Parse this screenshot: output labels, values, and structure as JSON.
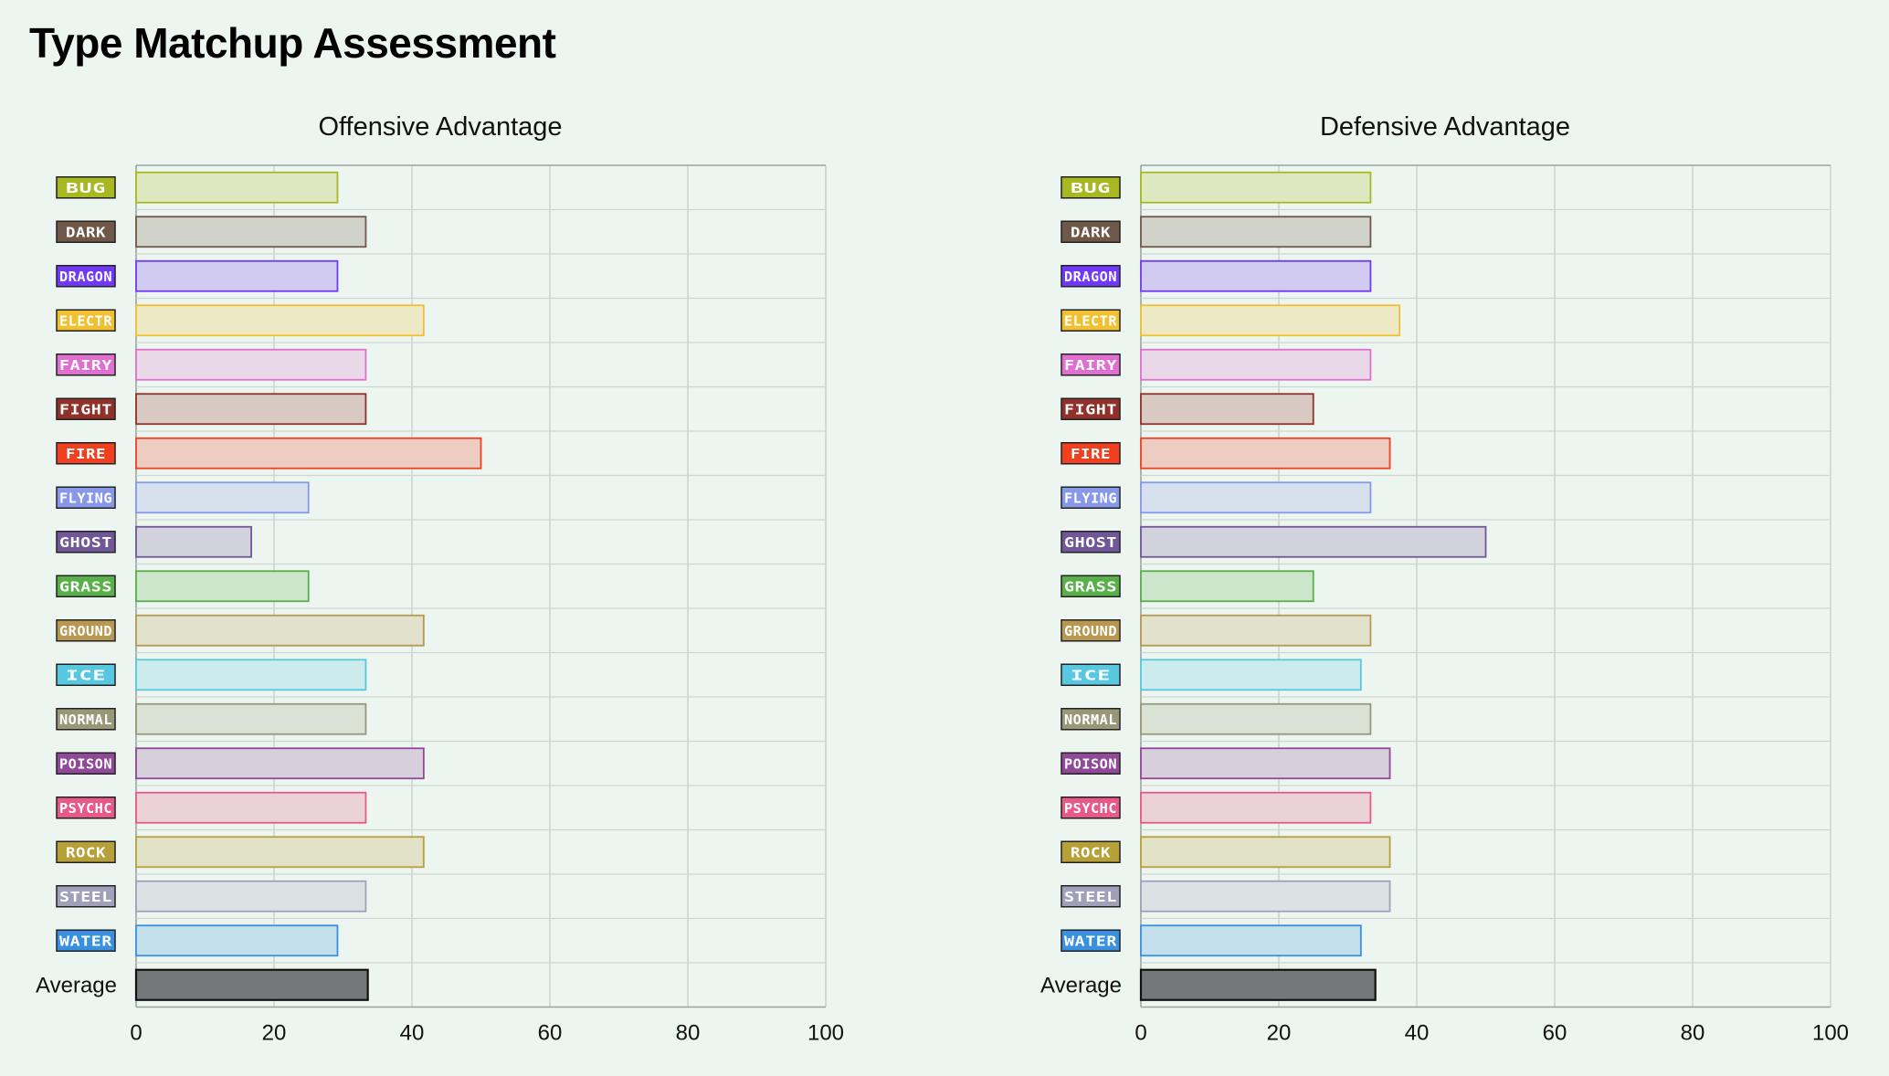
{
  "page": {
    "title": "Type Matchup Assessment"
  },
  "type_colors": {
    "BUG": "#a8b820",
    "DARK": "#705848",
    "DRAGON": "#7038f8",
    "ELECTR": "#f0c030",
    "FAIRY": "#e070d0",
    "FIGHT": "#903028",
    "FIRE": "#f04020",
    "FLYING": "#8898e8",
    "GHOST": "#705898",
    "GRASS": "#58b048",
    "GROUND": "#b89850",
    "ICE": "#58c8e0",
    "NORMAL": "#989878",
    "POISON": "#904898",
    "PSYCHC": "#e85888",
    "ROCK": "#b8a038",
    "STEEL": "#a0a0b8",
    "WATER": "#3890e0",
    "Average": "#3a3a3a"
  },
  "chart_data": [
    {
      "type": "bar",
      "orientation": "horizontal",
      "title": "Offensive Advantage",
      "categories": [
        "BUG",
        "DARK",
        "DRAGON",
        "ELECTR",
        "FAIRY",
        "FIGHT",
        "FIRE",
        "FLYING",
        "GHOST",
        "GRASS",
        "GROUND",
        "ICE",
        "NORMAL",
        "POISON",
        "PSYCHC",
        "ROCK",
        "STEEL",
        "WATER",
        "Average"
      ],
      "values": [
        29.2,
        33.3,
        29.2,
        41.7,
        33.3,
        33.3,
        50.0,
        25.0,
        16.7,
        25.0,
        41.7,
        33.3,
        33.3,
        41.7,
        33.3,
        41.7,
        33.3,
        29.2,
        33.6
      ],
      "xlim": [
        0,
        100
      ],
      "xticks": [
        "0",
        "20",
        "40",
        "60",
        "80",
        "100"
      ],
      "grid": true
    },
    {
      "type": "bar",
      "orientation": "horizontal",
      "title": "Defensive Advantage",
      "categories": [
        "BUG",
        "DARK",
        "DRAGON",
        "ELECTR",
        "FAIRY",
        "FIGHT",
        "FIRE",
        "FLYING",
        "GHOST",
        "GRASS",
        "GROUND",
        "ICE",
        "NORMAL",
        "POISON",
        "PSYCHC",
        "ROCK",
        "STEEL",
        "WATER",
        "Average"
      ],
      "values": [
        33.3,
        33.3,
        33.3,
        37.5,
        33.3,
        25.0,
        36.1,
        33.3,
        50.0,
        25.0,
        33.3,
        31.9,
        33.3,
        36.1,
        33.3,
        36.1,
        36.1,
        31.9,
        34.0
      ],
      "xlim": [
        0,
        100
      ],
      "xticks": [
        "0",
        "20",
        "40",
        "60",
        "80",
        "100"
      ],
      "grid": true
    }
  ]
}
